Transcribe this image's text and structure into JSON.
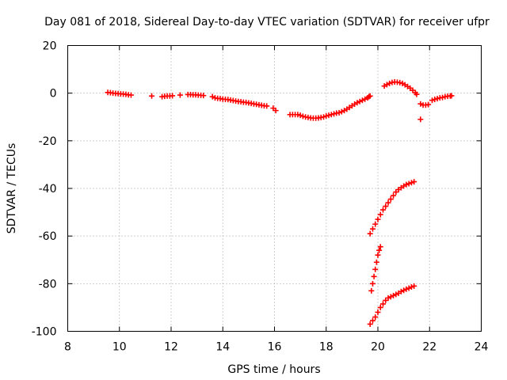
{
  "chart_data": {
    "type": "scatter",
    "title": "Day 081 of 2018, Sidereal Day-to-day VTEC variation (SDTVAR) for receiver ufpr",
    "xlabel": "GPS time / hours",
    "ylabel": "SDTVAR / TECUs",
    "xlim": [
      8,
      24
    ],
    "ylim": [
      -100,
      20
    ],
    "x_ticks": [
      8,
      10,
      12,
      14,
      16,
      18,
      20,
      22,
      24
    ],
    "y_ticks": [
      -100,
      -80,
      -60,
      -40,
      -20,
      0,
      20
    ],
    "x_tick_labels": [
      "8",
      "10",
      "12",
      "14",
      "16",
      "18",
      "20",
      "22",
      "24"
    ],
    "y_tick_labels": [
      "-100",
      "-80",
      "-60",
      "-40",
      "-20",
      "0",
      "20"
    ],
    "grid": true,
    "marker": "+",
    "color": "#ff0000",
    "series": [
      {
        "name": "seg1",
        "points": [
          [
            9.55,
            0.3
          ],
          [
            9.65,
            0.2
          ],
          [
            9.75,
            0
          ],
          [
            9.85,
            -0.1
          ],
          [
            9.95,
            -0.2
          ],
          [
            10.05,
            -0.3
          ],
          [
            10.15,
            -0.4
          ],
          [
            10.25,
            -0.5
          ],
          [
            10.35,
            -0.7
          ],
          [
            10.45,
            -0.8
          ]
        ]
      },
      {
        "name": "seg2",
        "points": [
          [
            11.25,
            -1.2
          ],
          [
            11.65,
            -1.5
          ],
          [
            11.75,
            -1.3
          ],
          [
            11.85,
            -1.2
          ],
          [
            11.95,
            -1.2
          ],
          [
            12.05,
            -1.1
          ],
          [
            12.35,
            -0.8
          ],
          [
            12.65,
            -0.6
          ],
          [
            12.75,
            -0.6
          ],
          [
            12.85,
            -0.7
          ],
          [
            12.95,
            -0.7
          ],
          [
            13.05,
            -0.8
          ],
          [
            13.15,
            -0.9
          ],
          [
            13.25,
            -1
          ]
        ]
      },
      {
        "name": "seg3",
        "points": [
          [
            13.6,
            -1.5
          ],
          [
            13.7,
            -2
          ],
          [
            13.8,
            -2.2
          ],
          [
            13.9,
            -2.3
          ],
          [
            14.0,
            -2.5
          ],
          [
            14.1,
            -2.6
          ],
          [
            14.2,
            -2.7
          ],
          [
            14.3,
            -2.9
          ],
          [
            14.4,
            -3.1
          ],
          [
            14.5,
            -3.3
          ],
          [
            14.6,
            -3.5
          ],
          [
            14.7,
            -3.6
          ],
          [
            14.8,
            -3.8
          ],
          [
            14.9,
            -3.9
          ],
          [
            15.0,
            -4.1
          ],
          [
            15.1,
            -4.3
          ],
          [
            15.2,
            -4.5
          ],
          [
            15.3,
            -4.7
          ],
          [
            15.4,
            -4.9
          ],
          [
            15.5,
            -5.1
          ],
          [
            15.6,
            -5.3
          ],
          [
            15.7,
            -5.4
          ]
        ]
      },
      {
        "name": "seg4",
        "points": [
          [
            15.95,
            -6.3
          ],
          [
            16.05,
            -7.3
          ]
        ]
      },
      {
        "name": "seg5",
        "points": [
          [
            16.6,
            -9
          ],
          [
            16.7,
            -9
          ],
          [
            16.8,
            -9
          ],
          [
            16.9,
            -9
          ],
          [
            17.0,
            -9.3
          ],
          [
            17.1,
            -9.7
          ],
          [
            17.2,
            -10
          ],
          [
            17.3,
            -10.2
          ],
          [
            17.4,
            -10.4
          ],
          [
            17.5,
            -10.5
          ],
          [
            17.6,
            -10.5
          ],
          [
            17.7,
            -10.4
          ],
          [
            17.8,
            -10.2
          ],
          [
            17.9,
            -10
          ],
          [
            18.0,
            -9.6
          ],
          [
            18.1,
            -9.3
          ],
          [
            18.2,
            -9
          ],
          [
            18.3,
            -8.7
          ],
          [
            18.4,
            -8.4
          ],
          [
            18.5,
            -8.2
          ],
          [
            18.6,
            -7.8
          ],
          [
            18.7,
            -7.3
          ],
          [
            18.8,
            -6.7
          ],
          [
            18.9,
            -6
          ],
          [
            19.0,
            -5.3
          ],
          [
            19.1,
            -4.6
          ],
          [
            19.2,
            -4
          ],
          [
            19.3,
            -3.5
          ],
          [
            19.4,
            -3
          ],
          [
            19.5,
            -2.5
          ],
          [
            19.6,
            -2
          ],
          [
            19.65,
            -1.5
          ],
          [
            19.7,
            -1.2
          ]
        ]
      },
      {
        "name": "seg6",
        "points": [
          [
            20.25,
            3
          ],
          [
            20.35,
            3.6
          ],
          [
            20.45,
            4.1
          ],
          [
            20.55,
            4.5
          ],
          [
            20.65,
            4.7
          ],
          [
            20.75,
            4.6
          ],
          [
            20.85,
            4.4
          ],
          [
            20.95,
            4.1
          ],
          [
            21.05,
            3.5
          ],
          [
            21.15,
            2.8
          ],
          [
            21.25,
            2.1
          ],
          [
            21.35,
            1.2
          ],
          [
            21.45,
            0.2
          ],
          [
            21.5,
            -0.5
          ]
        ]
      },
      {
        "name": "seg7",
        "points": [
          [
            21.65,
            -4.5
          ],
          [
            21.75,
            -5
          ],
          [
            21.85,
            -5
          ],
          [
            21.95,
            -4.8
          ],
          [
            21.65,
            -11
          ]
        ]
      },
      {
        "name": "seg8",
        "points": [
          [
            22.1,
            -3
          ],
          [
            22.2,
            -2.6
          ],
          [
            22.3,
            -2.3
          ],
          [
            22.4,
            -2
          ],
          [
            22.5,
            -1.8
          ],
          [
            22.6,
            -1.5
          ],
          [
            22.7,
            -1.3
          ],
          [
            22.8,
            -1.2
          ],
          [
            22.85,
            -1.1
          ]
        ]
      },
      {
        "name": "seg9",
        "points": [
          [
            19.7,
            -59
          ],
          [
            19.8,
            -57
          ],
          [
            19.9,
            -55
          ],
          [
            20.0,
            -53
          ],
          [
            20.1,
            -51
          ],
          [
            20.2,
            -49
          ],
          [
            20.3,
            -47.5
          ],
          [
            20.4,
            -46
          ],
          [
            20.5,
            -44.5
          ],
          [
            20.6,
            -43
          ],
          [
            20.7,
            -41.5
          ],
          [
            20.8,
            -40.5
          ],
          [
            20.9,
            -39.7
          ],
          [
            21.0,
            -39
          ],
          [
            21.1,
            -38.4
          ],
          [
            21.2,
            -38
          ],
          [
            21.3,
            -37.6
          ],
          [
            21.4,
            -37.2
          ]
        ]
      },
      {
        "name": "seg10",
        "points": [
          [
            19.75,
            -83
          ],
          [
            19.8,
            -80
          ],
          [
            19.85,
            -77
          ],
          [
            19.9,
            -74
          ],
          [
            19.95,
            -71
          ],
          [
            20.0,
            -68
          ],
          [
            20.05,
            -66
          ],
          [
            20.1,
            -64.5
          ]
        ]
      },
      {
        "name": "seg11",
        "points": [
          [
            19.7,
            -97
          ],
          [
            19.8,
            -95.5
          ],
          [
            19.9,
            -94
          ],
          [
            20.0,
            -92
          ],
          [
            20.1,
            -90
          ],
          [
            20.2,
            -88.5
          ],
          [
            20.3,
            -87
          ],
          [
            20.4,
            -86
          ],
          [
            20.5,
            -85.5
          ],
          [
            20.6,
            -85
          ],
          [
            20.7,
            -84.5
          ],
          [
            20.8,
            -84
          ],
          [
            20.9,
            -83.3
          ],
          [
            21.0,
            -82.8
          ],
          [
            21.1,
            -82.3
          ],
          [
            21.2,
            -81.9
          ],
          [
            21.3,
            -81.4
          ],
          [
            21.4,
            -81
          ]
        ]
      }
    ]
  }
}
